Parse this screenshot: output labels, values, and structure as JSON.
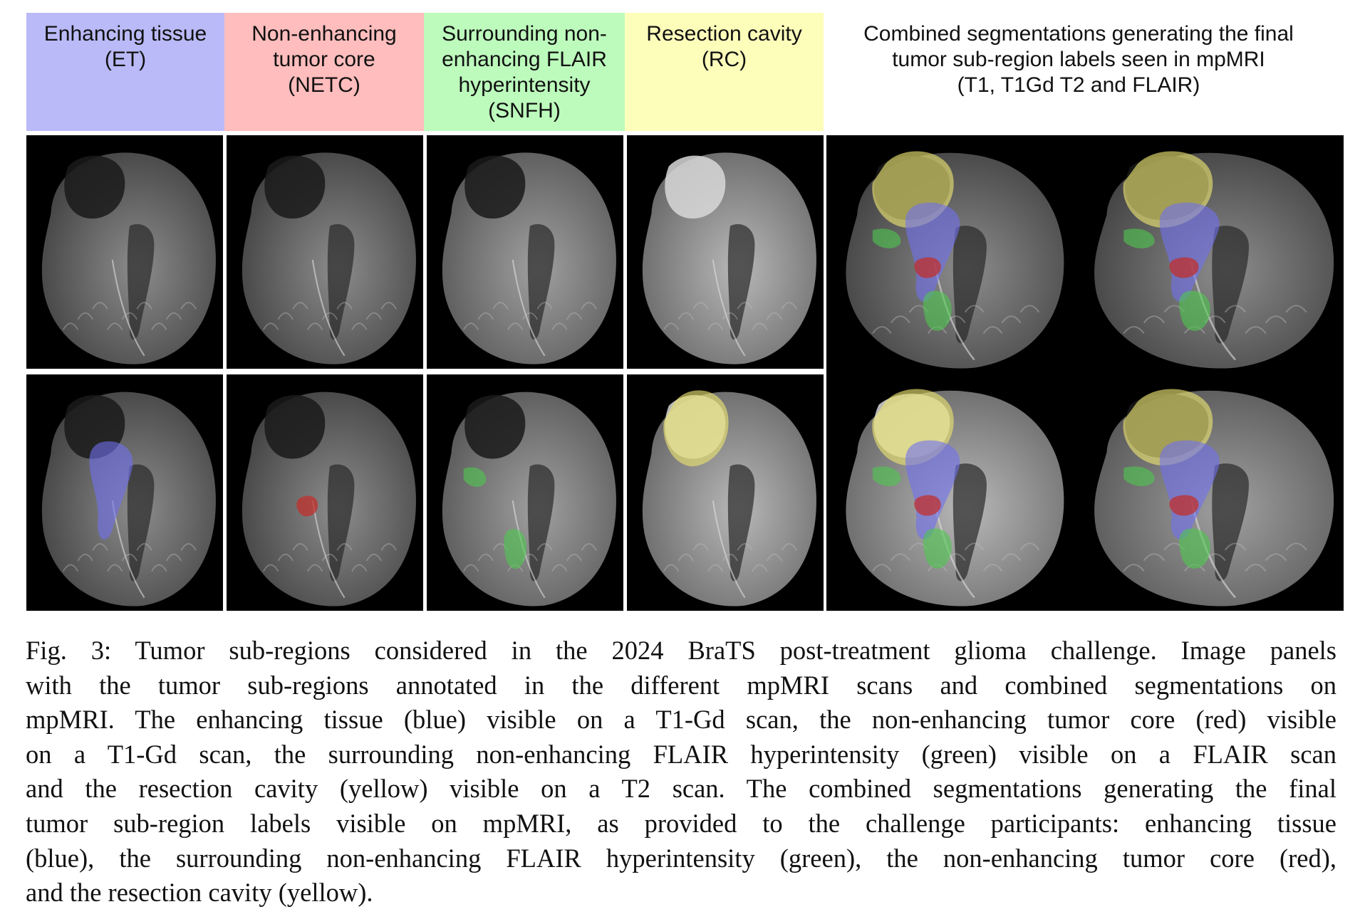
{
  "figure": {
    "headers": [
      {
        "id": "et",
        "lines": [
          "Enhancing tissue",
          "(ET)"
        ],
        "color": "#babaf8"
      },
      {
        "id": "netc",
        "lines": [
          "Non-enhancing",
          "tumor core",
          "(NETC)"
        ],
        "color": "#ffbdbd"
      },
      {
        "id": "snfh",
        "lines": [
          "Surrounding non-",
          "enhancing FLAIR",
          "hyperintensity",
          "(SNFH)"
        ],
        "color": "#bdfbbd"
      },
      {
        "id": "rc",
        "lines": [
          "Resection cavity",
          "(RC)"
        ],
        "color": "#fefebb"
      },
      {
        "id": "combined",
        "lines": [
          "Combined segmentations generating the final",
          "tumor sub-region labels seen in mpMRI",
          "(T1, T1Gd T2 and FLAIR)"
        ],
        "color": "#ffffff"
      }
    ],
    "label_colors": {
      "enhancing_tissue": "#6f6ff0",
      "non_enhancing_tumor_core": "#c0302c",
      "snfh": "#4fc84f",
      "resection_cavity": "#e8e070"
    },
    "panels": [
      {
        "column": "et",
        "row": 0,
        "overlay": []
      },
      {
        "column": "netc",
        "row": 0,
        "overlay": []
      },
      {
        "column": "snfh",
        "row": 0,
        "overlay": []
      },
      {
        "column": "rc",
        "row": 0,
        "overlay": []
      },
      {
        "column": "et",
        "row": 1,
        "overlay": [
          "enhancing_tissue"
        ]
      },
      {
        "column": "netc",
        "row": 1,
        "overlay": [
          "non_enhancing_tumor_core"
        ]
      },
      {
        "column": "snfh",
        "row": 1,
        "overlay": [
          "snfh"
        ]
      },
      {
        "column": "rc",
        "row": 1,
        "overlay": [
          "resection_cavity"
        ]
      },
      {
        "column": "combined",
        "row": 0,
        "overlay": [
          "resection_cavity",
          "enhancing_tissue",
          "snfh",
          "non_enhancing_tumor_core"
        ]
      },
      {
        "column": "combined",
        "row": 0,
        "overlay": [
          "resection_cavity",
          "enhancing_tissue",
          "snfh",
          "non_enhancing_tumor_core"
        ]
      },
      {
        "column": "combined",
        "row": 1,
        "overlay": [
          "resection_cavity",
          "enhancing_tissue",
          "snfh",
          "non_enhancing_tumor_core"
        ]
      },
      {
        "column": "combined",
        "row": 1,
        "overlay": [
          "resection_cavity",
          "enhancing_tissue",
          "snfh",
          "non_enhancing_tumor_core"
        ]
      }
    ]
  },
  "caption": {
    "lines": [
      "Fig. 3: Tumor sub-regions considered in the 2024 BraTS post-treatment glioma challenge. Image panels",
      "with the tumor sub-regions annotated in the different mpMRI scans and combined segmentations on",
      "mpMRI. The enhancing tissue (blue) visible on a T1-Gd scan, the non-enhancing tumor core (red) visible",
      "on a T1-Gd scan, the surrounding non-enhancing FLAIR hyperintensity (green) visible on a FLAIR scan",
      "and the resection cavity (yellow) visible on a T2 scan. The combined segmentations generating the final",
      "tumor sub-region labels visible on mpMRI, as provided to the challenge participants: enhancing tissue",
      "(blue), the surrounding non-enhancing FLAIR hyperintensity (green), the non-enhancing tumor core (red),",
      "and the resection cavity (yellow)."
    ]
  }
}
